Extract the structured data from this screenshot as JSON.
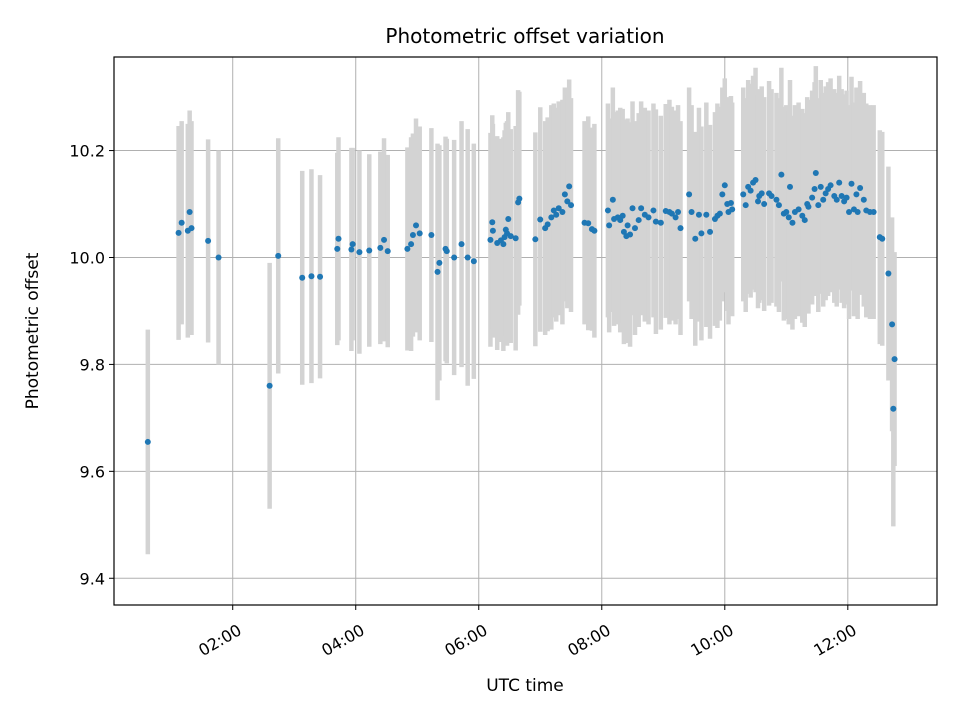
{
  "chart_data": {
    "type": "scatter",
    "title": "Photometric offset variation",
    "xlabel": "UTC time",
    "ylabel": "Photometric offset",
    "x_unit": "hours UTC",
    "xlim": [
      0.07,
      13.45
    ],
    "ylim": [
      9.35,
      10.375
    ],
    "grid": true,
    "xticks": [
      {
        "value": 2,
        "label": "02:00"
      },
      {
        "value": 4,
        "label": "04:00"
      },
      {
        "value": 6,
        "label": "06:00"
      },
      {
        "value": 8,
        "label": "08:00"
      },
      {
        "value": 10,
        "label": "10:00"
      },
      {
        "value": 12,
        "label": "12:00"
      }
    ],
    "yticks": [
      {
        "value": 9.4,
        "label": "9.4"
      },
      {
        "value": 9.6,
        "label": "9.6"
      },
      {
        "value": 9.8,
        "label": "9.8"
      },
      {
        "value": 10.0,
        "label": "10.0"
      },
      {
        "value": 10.2,
        "label": "10.2"
      }
    ],
    "colors": {
      "points": "#1f77b4",
      "errorbars": "#d3d3d3",
      "grid": "#b0b0b0",
      "axes": "#000000"
    },
    "series": [
      {
        "name": "Photometric offset",
        "points": [
          [
            0.62,
            9.655,
            0.21
          ],
          [
            1.12,
            10.046,
            0.2
          ],
          [
            1.17,
            10.065,
            0.19
          ],
          [
            1.27,
            10.05,
            0.2
          ],
          [
            1.3,
            10.085,
            0.19
          ],
          [
            1.33,
            10.055,
            0.2
          ],
          [
            1.6,
            10.031,
            0.19
          ],
          [
            1.77,
            10.0,
            0.2
          ],
          [
            2.6,
            9.76,
            0.23
          ],
          [
            2.74,
            10.003,
            0.22
          ],
          [
            3.13,
            9.962,
            0.2
          ],
          [
            3.28,
            9.965,
            0.2
          ],
          [
            3.42,
            9.964,
            0.19
          ],
          [
            3.7,
            10.016,
            0.18
          ],
          [
            3.72,
            10.035,
            0.19
          ],
          [
            3.93,
            10.015,
            0.19
          ],
          [
            3.95,
            10.025,
            0.18
          ],
          [
            4.06,
            10.01,
            0.19
          ],
          [
            4.22,
            10.013,
            0.18
          ],
          [
            4.4,
            10.018,
            0.18
          ],
          [
            4.46,
            10.033,
            0.19
          ],
          [
            4.52,
            10.012,
            0.18
          ],
          [
            4.84,
            10.016,
            0.19
          ],
          [
            4.9,
            10.025,
            0.2
          ],
          [
            4.93,
            10.042,
            0.19
          ],
          [
            4.98,
            10.06,
            0.2
          ],
          [
            5.04,
            10.045,
            0.2
          ],
          [
            5.23,
            10.042,
            0.2
          ],
          [
            5.33,
            9.973,
            0.24
          ],
          [
            5.36,
            9.99,
            0.22
          ],
          [
            5.46,
            10.016,
            0.21
          ],
          [
            5.48,
            10.012,
            0.21
          ],
          [
            5.6,
            10.0,
            0.22
          ],
          [
            5.72,
            10.025,
            0.23
          ],
          [
            5.82,
            10.0,
            0.24
          ],
          [
            5.92,
            9.993,
            0.22
          ],
          [
            6.19,
            10.033,
            0.2
          ],
          [
            6.22,
            10.066,
            0.2
          ],
          [
            6.23,
            10.05,
            0.2
          ],
          [
            6.3,
            10.027,
            0.2
          ],
          [
            6.36,
            10.032,
            0.19
          ],
          [
            6.4,
            10.025,
            0.2
          ],
          [
            6.42,
            10.038,
            0.2
          ],
          [
            6.44,
            10.052,
            0.2
          ],
          [
            6.46,
            10.045,
            0.21
          ],
          [
            6.48,
            10.072,
            0.2
          ],
          [
            6.52,
            10.04,
            0.2
          ],
          [
            6.6,
            10.036,
            0.21
          ],
          [
            6.64,
            10.103,
            0.21
          ],
          [
            6.66,
            10.11,
            0.2
          ],
          [
            6.92,
            10.034,
            0.2
          ],
          [
            7.0,
            10.071,
            0.21
          ],
          [
            7.08,
            10.055,
            0.2
          ],
          [
            7.12,
            10.062,
            0.2
          ],
          [
            7.18,
            10.075,
            0.21
          ],
          [
            7.22,
            10.088,
            0.2
          ],
          [
            7.26,
            10.08,
            0.2
          ],
          [
            7.3,
            10.092,
            0.2
          ],
          [
            7.36,
            10.085,
            0.21
          ],
          [
            7.4,
            10.118,
            0.2
          ],
          [
            7.44,
            10.105,
            0.2
          ],
          [
            7.47,
            10.133,
            0.2
          ],
          [
            7.5,
            10.098,
            0.2
          ],
          [
            7.72,
            10.065,
            0.19
          ],
          [
            7.78,
            10.064,
            0.2
          ],
          [
            7.84,
            10.053,
            0.19
          ],
          [
            7.88,
            10.05,
            0.2
          ],
          [
            8.1,
            10.088,
            0.2
          ],
          [
            8.12,
            10.06,
            0.2
          ],
          [
            8.18,
            10.108,
            0.21
          ],
          [
            8.2,
            10.072,
            0.2
          ],
          [
            8.26,
            10.075,
            0.2
          ],
          [
            8.3,
            10.07,
            0.21
          ],
          [
            8.34,
            10.078,
            0.2
          ],
          [
            8.36,
            10.048,
            0.21
          ],
          [
            8.4,
            10.04,
            0.2
          ],
          [
            8.42,
            10.06,
            0.2
          ],
          [
            8.46,
            10.043,
            0.21
          ],
          [
            8.5,
            10.092,
            0.2
          ],
          [
            8.54,
            10.055,
            0.2
          ],
          [
            8.6,
            10.07,
            0.2
          ],
          [
            8.64,
            10.092,
            0.2
          ],
          [
            8.7,
            10.08,
            0.2
          ],
          [
            8.76,
            10.075,
            0.2
          ],
          [
            8.84,
            10.088,
            0.2
          ],
          [
            8.88,
            10.067,
            0.21
          ],
          [
            8.96,
            10.065,
            0.2
          ],
          [
            9.04,
            10.087,
            0.2
          ],
          [
            9.1,
            10.085,
            0.21
          ],
          [
            9.14,
            10.082,
            0.2
          ],
          [
            9.2,
            10.075,
            0.2
          ],
          [
            9.24,
            10.085,
            0.2
          ],
          [
            9.28,
            10.055,
            0.2
          ],
          [
            9.42,
            10.118,
            0.2
          ],
          [
            9.46,
            10.085,
            0.2
          ],
          [
            9.52,
            10.035,
            0.2
          ],
          [
            9.58,
            10.08,
            0.2
          ],
          [
            9.62,
            10.045,
            0.2
          ],
          [
            9.7,
            10.08,
            0.21
          ],
          [
            9.76,
            10.048,
            0.2
          ],
          [
            9.84,
            10.072,
            0.2
          ],
          [
            9.88,
            10.078,
            0.21
          ],
          [
            9.92,
            10.082,
            0.2
          ],
          [
            9.96,
            10.118,
            0.2
          ],
          [
            10.0,
            10.135,
            0.2
          ],
          [
            10.04,
            10.1,
            0.2
          ],
          [
            10.06,
            10.085,
            0.21
          ],
          [
            10.1,
            10.102,
            0.2
          ],
          [
            10.12,
            10.09,
            0.2
          ],
          [
            10.3,
            10.118,
            0.2
          ],
          [
            10.34,
            10.098,
            0.2
          ],
          [
            10.38,
            10.132,
            0.2
          ],
          [
            10.42,
            10.125,
            0.2
          ],
          [
            10.46,
            10.14,
            0.2
          ],
          [
            10.5,
            10.145,
            0.21
          ],
          [
            10.54,
            10.105,
            0.2
          ],
          [
            10.56,
            10.115,
            0.2
          ],
          [
            10.6,
            10.12,
            0.2
          ],
          [
            10.64,
            10.1,
            0.2
          ],
          [
            10.72,
            10.12,
            0.21
          ],
          [
            10.76,
            10.115,
            0.2
          ],
          [
            10.84,
            10.108,
            0.2
          ],
          [
            10.88,
            10.098,
            0.2
          ],
          [
            10.92,
            10.155,
            0.2
          ],
          [
            10.96,
            10.082,
            0.2
          ],
          [
            11.0,
            10.085,
            0.2
          ],
          [
            11.04,
            10.075,
            0.2
          ],
          [
            11.06,
            10.132,
            0.2
          ],
          [
            11.1,
            10.065,
            0.2
          ],
          [
            11.14,
            10.085,
            0.2
          ],
          [
            11.2,
            10.09,
            0.2
          ],
          [
            11.26,
            10.078,
            0.2
          ],
          [
            11.3,
            10.07,
            0.2
          ],
          [
            11.34,
            10.1,
            0.2
          ],
          [
            11.36,
            10.095,
            0.2
          ],
          [
            11.42,
            10.112,
            0.2
          ],
          [
            11.46,
            10.128,
            0.2
          ],
          [
            11.48,
            10.158,
            0.2
          ],
          [
            11.52,
            10.098,
            0.2
          ],
          [
            11.56,
            10.132,
            0.2
          ],
          [
            11.6,
            10.108,
            0.2
          ],
          [
            11.64,
            10.12,
            0.2
          ],
          [
            11.68,
            10.128,
            0.2
          ],
          [
            11.72,
            10.135,
            0.2
          ],
          [
            11.78,
            10.115,
            0.2
          ],
          [
            11.82,
            10.108,
            0.2
          ],
          [
            11.86,
            10.14,
            0.2
          ],
          [
            11.9,
            10.115,
            0.2
          ],
          [
            11.94,
            10.105,
            0.2
          ],
          [
            11.98,
            10.112,
            0.2
          ],
          [
            12.02,
            10.085,
            0.2
          ],
          [
            12.06,
            10.138,
            0.2
          ],
          [
            12.1,
            10.09,
            0.2
          ],
          [
            12.14,
            10.118,
            0.2
          ],
          [
            12.16,
            10.085,
            0.2
          ],
          [
            12.2,
            10.13,
            0.2
          ],
          [
            12.26,
            10.108,
            0.2
          ],
          [
            12.3,
            10.088,
            0.2
          ],
          [
            12.36,
            10.085,
            0.2
          ],
          [
            12.42,
            10.085,
            0.2
          ],
          [
            12.52,
            10.038,
            0.2
          ],
          [
            12.56,
            10.035,
            0.2
          ],
          [
            12.66,
            9.97,
            0.2
          ],
          [
            12.72,
            9.875,
            0.2
          ],
          [
            12.76,
            9.81,
            0.2
          ],
          [
            12.74,
            9.717,
            0.22
          ]
        ]
      }
    ]
  }
}
